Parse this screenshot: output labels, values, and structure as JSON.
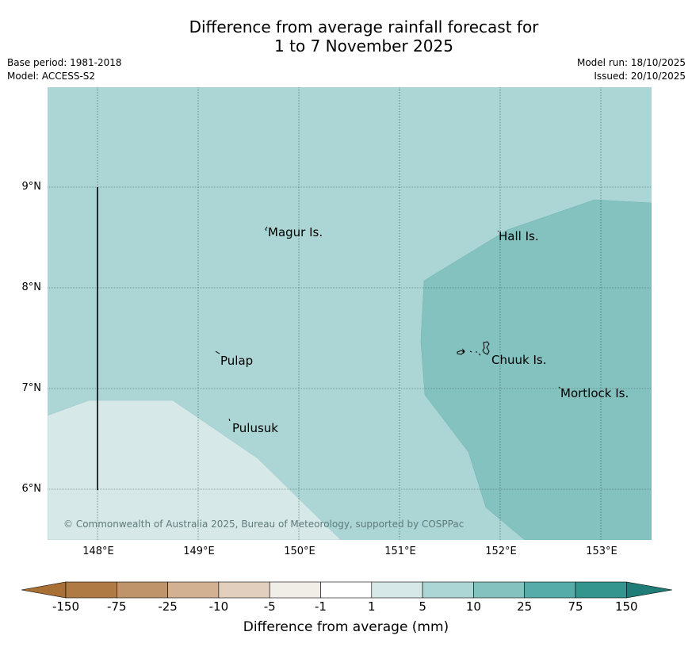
{
  "title": {
    "line1": "Difference from average rainfall forecast for",
    "line2": "1 to 7 November 2025"
  },
  "meta": {
    "base_period": "Base period: 1981-2018",
    "model": "Model: ACCESS-S2",
    "model_run": "Model run: 18/10/2025",
    "issued": "Issued: 20/10/2025"
  },
  "map": {
    "lat_labels": [
      "9°N",
      "8°N",
      "7°N",
      "6°N"
    ],
    "lon_labels": [
      "148°E",
      "149°E",
      "150°E",
      "151°E",
      "152°E",
      "153°E"
    ],
    "places": [
      "Magur Is.",
      "Hall Is.",
      "Pulap",
      "Chuuk Is.",
      "Mortlock Is.",
      "Pulusuk"
    ],
    "copyright": "© Commonwealth of Australia 2025, Bureau of Meteorology, supported by COSPPac",
    "colors": {
      "category_1_5": "#d6e9e8",
      "category_5_10": "#acd6d5",
      "category_10_25": "#84c2c0"
    }
  },
  "legend": {
    "title": "Difference from average (mm)",
    "tick_labels": [
      "-150",
      "-75",
      "-25",
      "-10",
      "-5",
      "-1",
      "1",
      "5",
      "10",
      "25",
      "75",
      "150"
    ],
    "colors": [
      "#a87034",
      "#b07a45",
      "#c0946b",
      "#d2b193",
      "#e3cfbe",
      "#f1eee8",
      "#ffffff",
      "#d6e9e8",
      "#acd6d5",
      "#84c2c0",
      "#55aca9",
      "#34958f",
      "#1f7c76"
    ]
  }
}
